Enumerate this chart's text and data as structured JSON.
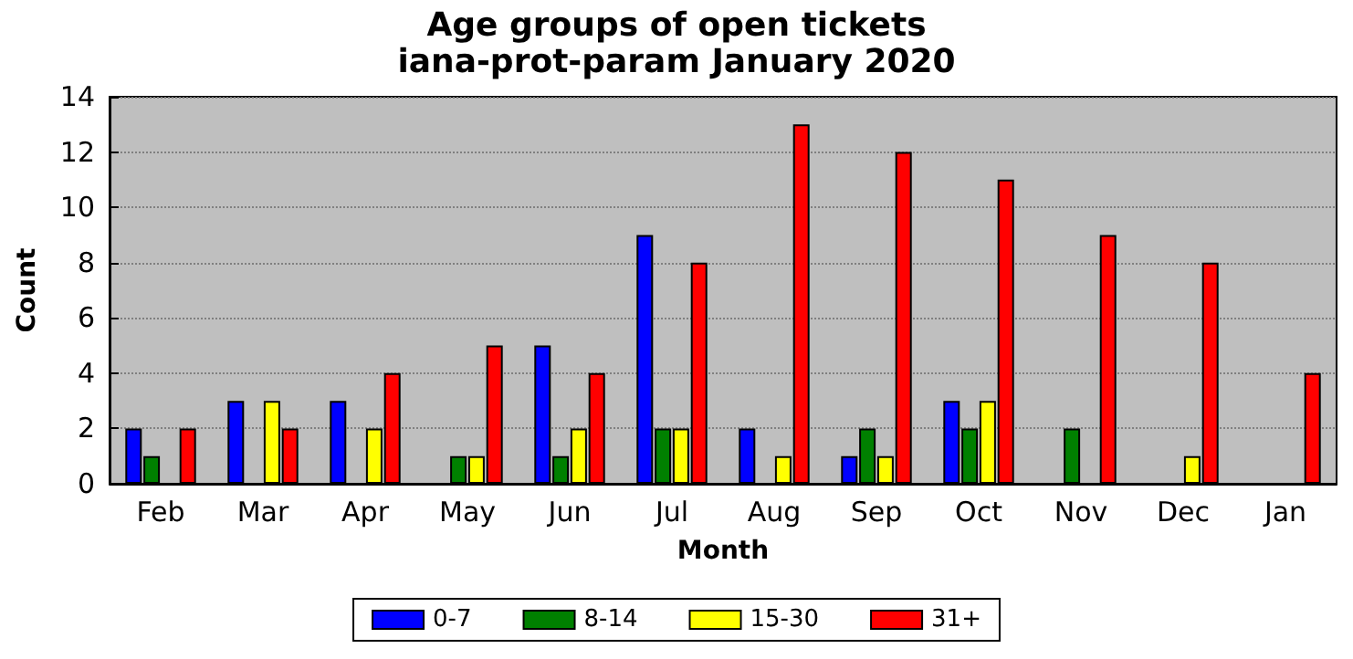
{
  "chart_data": {
    "type": "bar",
    "title": "Age groups of open tickets",
    "subtitle": "iana-prot-param January 2020",
    "xlabel": "Month",
    "ylabel": "Count",
    "categories": [
      "Feb",
      "Mar",
      "Apr",
      "May",
      "Jun",
      "Jul",
      "Aug",
      "Sep",
      "Oct",
      "Nov",
      "Dec",
      "Jan"
    ],
    "series": [
      {
        "name": "0-7",
        "color": "#0000ff",
        "values": [
          2,
          3,
          3,
          0,
          5,
          9,
          2,
          1,
          3,
          0,
          0,
          0
        ]
      },
      {
        "name": "8-14",
        "color": "#008000",
        "values": [
          1,
          0,
          0,
          1,
          1,
          2,
          0,
          2,
          2,
          2,
          0,
          0
        ]
      },
      {
        "name": "15-30",
        "color": "#ffff00",
        "values": [
          0,
          3,
          2,
          1,
          2,
          2,
          1,
          1,
          3,
          0,
          1,
          0
        ]
      },
      {
        "name": "31+",
        "color": "#ff0000",
        "values": [
          2,
          2,
          4,
          5,
          4,
          8,
          13,
          12,
          11,
          9,
          8,
          4
        ]
      }
    ],
    "ylim": [
      0,
      14
    ],
    "yticks": [
      0,
      2,
      4,
      6,
      8,
      10,
      12,
      14
    ],
    "grid": "y",
    "legend": "bottom"
  }
}
